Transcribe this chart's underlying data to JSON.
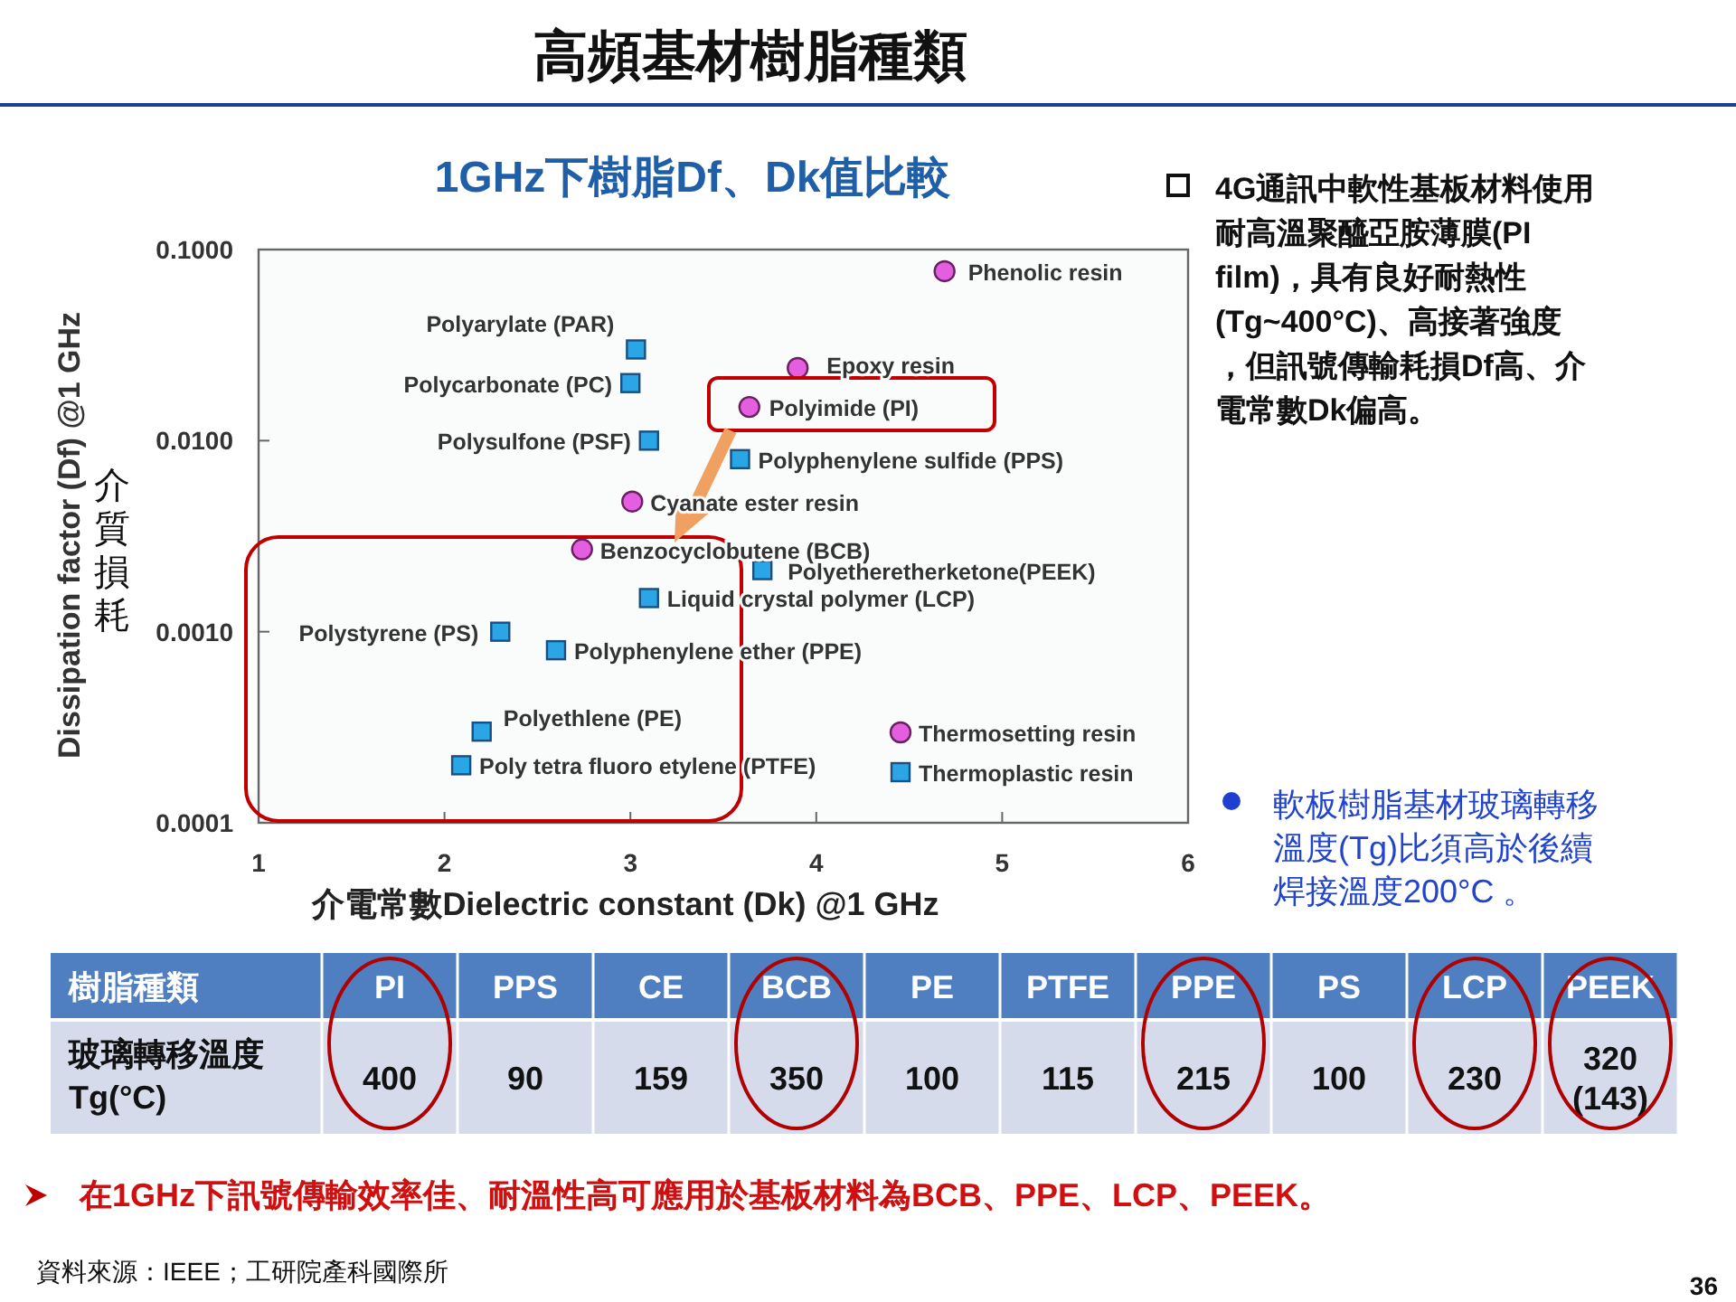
{
  "chart_data": [
    {
      "type": "scatter",
      "title": "1GHz下樹脂Df、Dk值比較",
      "xlabel": "介電常數Dielectric  constant (Dk) @1 GHz",
      "ylabel": "Dissipation factor (Df) @1 GHz",
      "log": "y",
      "legend": "bottom right",
      "xlim": [
        1,
        6
      ],
      "xticks": [
        1,
        2,
        3,
        4,
        5,
        6
      ],
      "ylim": [
        0.0001,
        0.1
      ],
      "yticks": [
        {
          "value": 0.0001,
          "label": "0.0001"
        },
        {
          "value": 0.001,
          "label": "0.0010"
        },
        {
          "value": 0.01,
          "label": "0.0100"
        },
        {
          "value": 0.1,
          "label": "0.1000"
        }
      ],
      "series": [
        {
          "name": "Thermosetting resin",
          "color": "#e45ee0",
          "marker": "circle",
          "x": [
            4.69,
            3.9,
            3.64,
            3.01,
            2.74
          ],
          "values": [
            0.077,
            0.024,
            0.015,
            0.0048,
            0.0027
          ]
        },
        {
          "name": "Thermoplastic resin",
          "color": "#2aa6e6",
          "marker": "square",
          "x": [
            3.03,
            3.0,
            3.1,
            3.59,
            3.71,
            3.1,
            2.3,
            2.6,
            2.2,
            2.09
          ],
          "values": [
            0.03,
            0.02,
            0.01,
            0.008,
            0.0021,
            0.0015,
            0.001,
            0.0008,
            0.0003,
            0.0002
          ]
        }
      ],
      "annotations": [
        {
          "text": "Phenolic resin",
          "x": 4.69,
          "y": 0.077
        },
        {
          "text": "Epoxy resin",
          "x": 3.9,
          "y": 0.024
        },
        {
          "text": "Polyimide (PI)",
          "x": 3.64,
          "y": 0.015
        },
        {
          "text": "Cyanate ester resin",
          "x": 3.01,
          "y": 0.0048
        },
        {
          "text": "Benzocyclobutene (BCB)",
          "x": 2.74,
          "y": 0.0027
        },
        {
          "text": "Polyarylate (PAR)",
          "x": 3.03,
          "y": 0.03
        },
        {
          "text": "Polycarbonate (PC)",
          "x": 3.0,
          "y": 0.02
        },
        {
          "text": "Polysulfone (PSF)",
          "x": 3.1,
          "y": 0.01
        },
        {
          "text": "Polyphenylene sulfide (PPS)",
          "x": 3.59,
          "y": 0.008
        },
        {
          "text": "Polyetheretherketone(PEEK)",
          "x": 3.71,
          "y": 0.0021
        },
        {
          "text": "Liquid crystal polymer (LCP)",
          "x": 3.1,
          "y": 0.0015
        },
        {
          "text": "Polystyrene (PS)",
          "x": 2.3,
          "y": 0.001
        },
        {
          "text": "Polyphenylene ether (PPE)",
          "x": 2.6,
          "y": 0.0008
        },
        {
          "text": "Polyethlene (PE)",
          "x": 2.2,
          "y": 0.0003
        },
        {
          "text": "Poly tetra fluoro etylene (PTFE)",
          "x": 2.09,
          "y": 0.0002
        },
        "高頻基材樹脂種類",
        "介質損耗",
        "4G通訊中軟性基板材料使用耐高溫聚醯亞胺薄膜(PI film)，具有良好耐熱性(Tg~400°C)、高接著強度，但訊號傳輸耗損Df高、介電常數Dk偏高。",
        "軟板樹脂基材玻璃轉移溫度(Tg)比須高於後續焊接溫度200°C 。"
      ]
    },
    {
      "type": "other",
      "xlabel": "樹脂種類",
      "ylabel": "玻璃轉移溫度\nTg(°C)",
      "categories": [
        "PI",
        "PPS",
        "CE",
        "BCB",
        "PE",
        "PTFE",
        "PPE",
        "PS",
        "LCP",
        "PEEK"
      ],
      "value_labels": [
        "400",
        "90",
        "159",
        "350",
        "100",
        "115",
        "215",
        "100",
        "230",
        "320\n(143)"
      ],
      "annotations": [
        "在1GHz下訊號傳輸效率佳、耐溫性高可應用於基板材料為BCB、PPE、LCP、PEEK。",
        "資料來源：IEEE；工研院產科國際所",
        "36"
      ]
    }
  ]
}
